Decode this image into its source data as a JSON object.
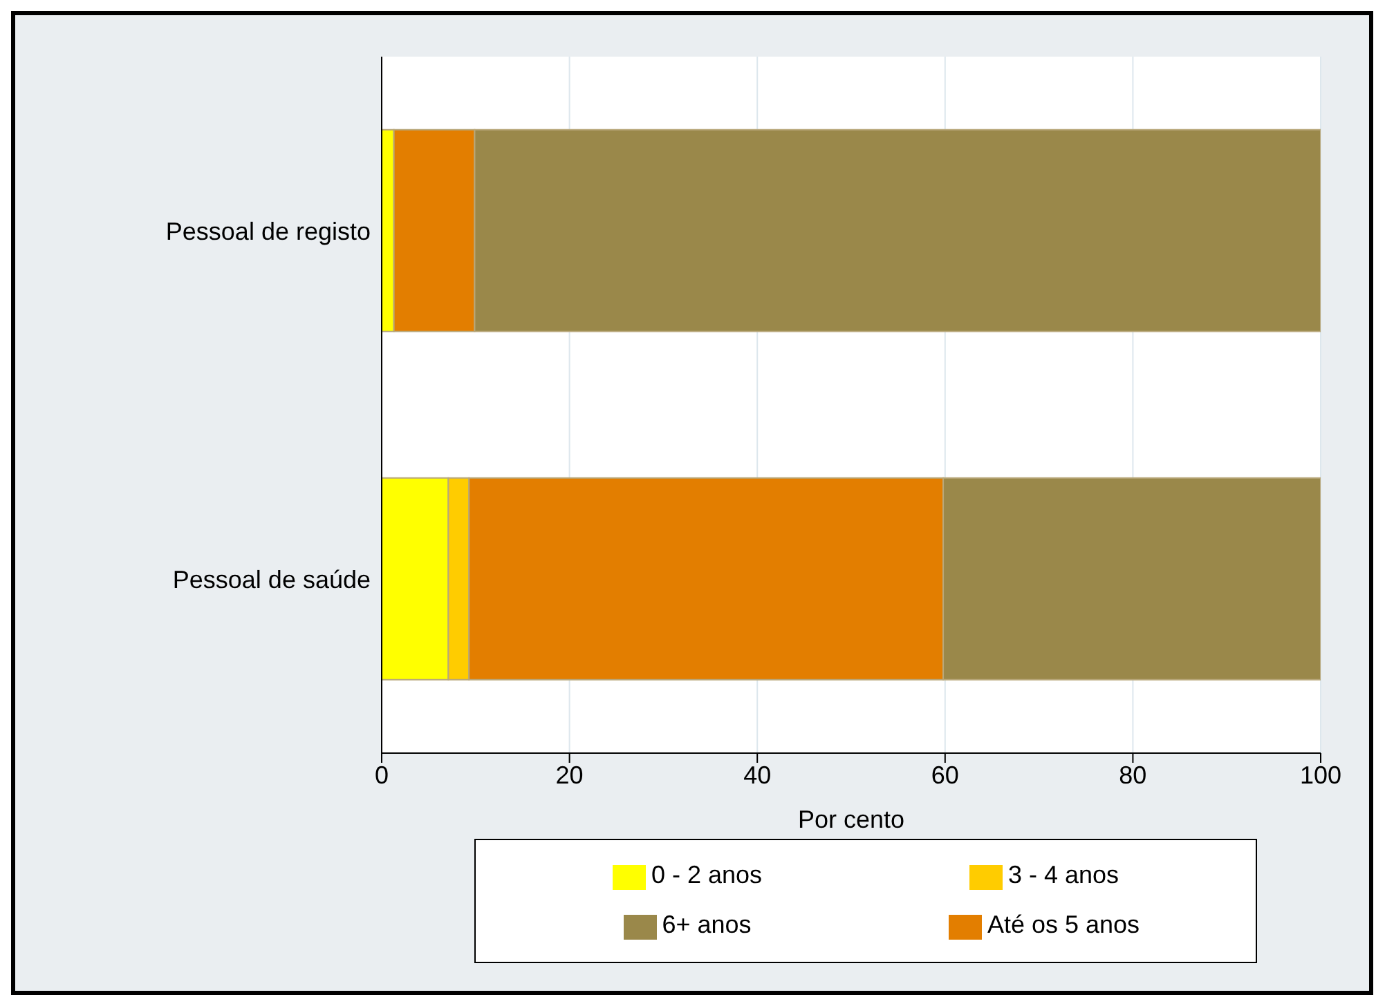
{
  "chart_data": {
    "type": "bar",
    "orientation": "horizontal",
    "stacked": true,
    "xlabel": "Por cento",
    "categories": [
      "Pessoal de registo",
      "Pessoal de saúde"
    ],
    "series": [
      {
        "name": "0 - 2 anos",
        "color": "#ffff00",
        "values": [
          1.3,
          7.1
        ]
      },
      {
        "name": "3 - 4 anos",
        "color": "#ffcc00",
        "values": [
          0,
          2.2
        ]
      },
      {
        "name": "Até os 5 anos",
        "color": "#e37e00",
        "values": [
          8.6,
          50.5
        ]
      },
      {
        "name": "6+ anos",
        "color": "#9a884a",
        "values": [
          90.1,
          40.2
        ]
      }
    ],
    "xlim": [
      0,
      100
    ],
    "xticks": [
      0,
      20,
      40,
      60,
      80,
      100
    ],
    "grid": "x",
    "legend": "bottom"
  }
}
